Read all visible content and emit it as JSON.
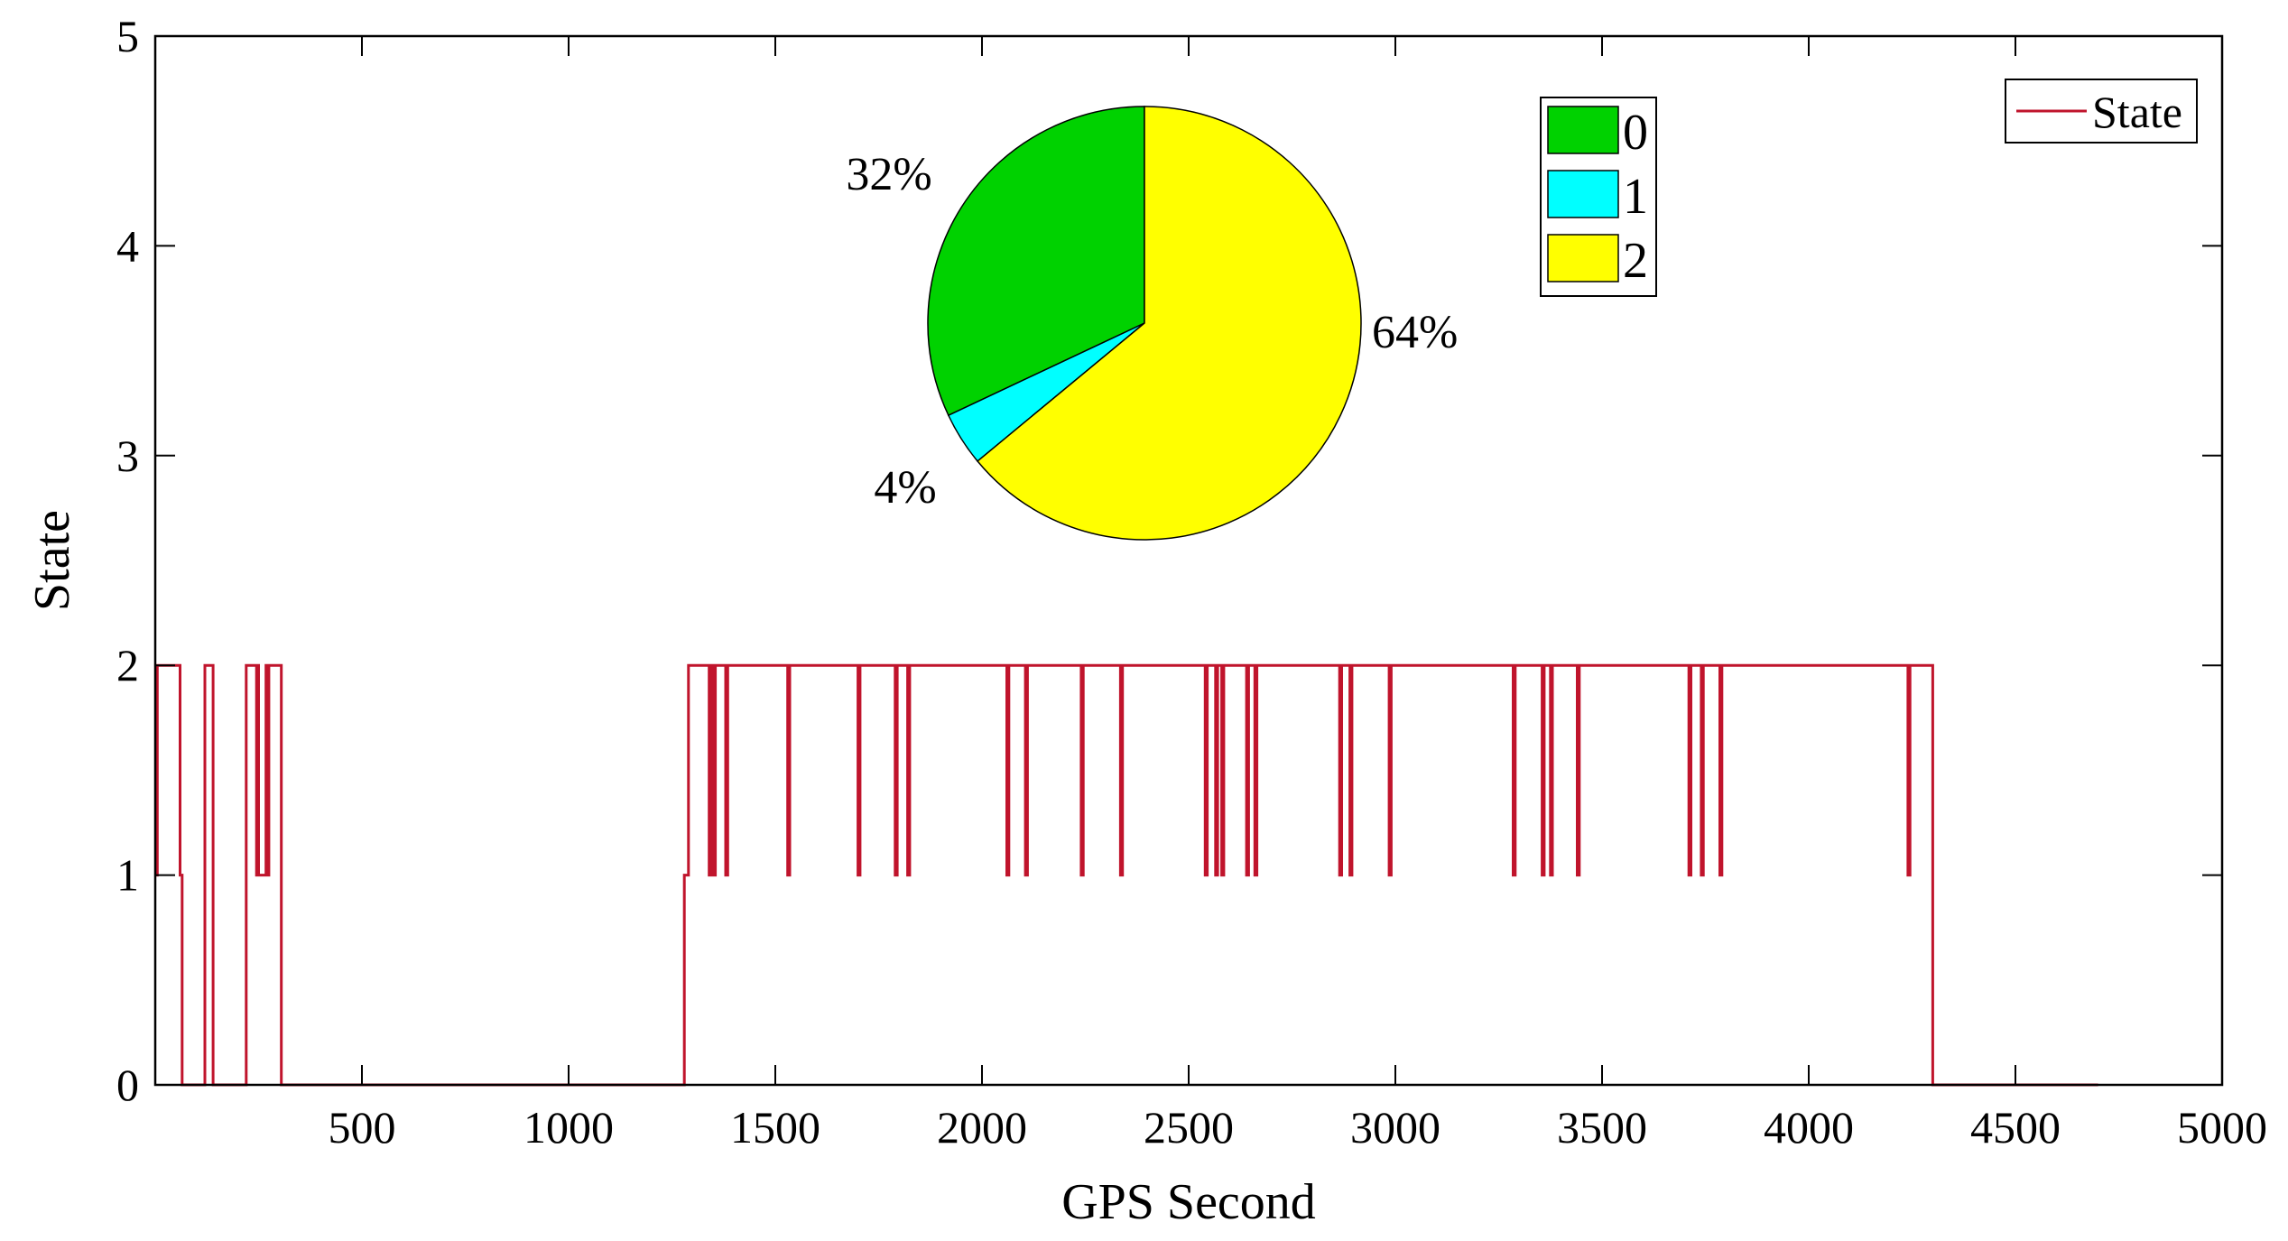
{
  "chart_data": [
    {
      "type": "line",
      "step": true,
      "xlabel": "GPS Second",
      "ylabel": "State",
      "xlim": [
        0,
        5000
      ],
      "ylim": [
        0,
        5
      ],
      "xticks": [
        500,
        1000,
        1500,
        2000,
        2500,
        3000,
        3500,
        4000,
        4500,
        5000
      ],
      "yticks": [
        0,
        1,
        2,
        3,
        4,
        5
      ],
      "grid": false,
      "legend_position": "top-right",
      "series": [
        {
          "name": "State",
          "color": "#c0142c",
          "x": [
            0,
            5,
            5,
            60,
            60,
            65,
            65,
            120,
            120,
            140,
            140,
            220,
            220,
            245,
            245,
            248,
            248,
            250,
            250,
            268,
            268,
            272,
            272,
            275,
            275,
            305,
            305,
            1280,
            1280,
            1290,
            1290,
            1340,
            1340,
            1345,
            1345,
            1350,
            1350,
            1355,
            1355,
            1380,
            1380,
            1385,
            1385,
            1530,
            1530,
            1535,
            1535,
            1700,
            1700,
            1705,
            1705,
            1790,
            1790,
            1795,
            1795,
            1820,
            1820,
            1825,
            1825,
            2060,
            2060,
            2065,
            2065,
            2105,
            2105,
            2110,
            2110,
            2240,
            2240,
            2245,
            2245,
            2335,
            2335,
            2340,
            2340,
            2540,
            2540,
            2545,
            2545,
            2565,
            2565,
            2570,
            2570,
            2580,
            2580,
            2585,
            2585,
            2640,
            2640,
            2645,
            2645,
            2660,
            2660,
            2665,
            2665,
            2865,
            2865,
            2870,
            2870,
            2890,
            2890,
            2895,
            2895,
            2985,
            2985,
            2990,
            2990,
            3285,
            3285,
            3290,
            3290,
            3355,
            3355,
            3360,
            3360,
            3375,
            3375,
            3380,
            3380,
            3440,
            3440,
            3445,
            3445,
            3710,
            3710,
            3715,
            3715,
            3740,
            3740,
            3745,
            3745,
            3785,
            3785,
            3790,
            3790,
            4240,
            4240,
            4245,
            4245,
            4300,
            4300,
            4700
          ],
          "y": [
            1,
            1,
            2,
            2,
            1,
            1,
            0,
            0,
            2,
            2,
            0,
            0,
            2,
            2,
            1,
            1,
            2,
            2,
            1,
            1,
            2,
            2,
            1,
            1,
            2,
            2,
            0,
            0,
            1,
            1,
            2,
            2,
            1,
            1,
            2,
            2,
            1,
            1,
            2,
            2,
            1,
            1,
            2,
            2,
            1,
            1,
            2,
            2,
            1,
            1,
            2,
            2,
            1,
            1,
            2,
            2,
            1,
            1,
            2,
            2,
            1,
            1,
            2,
            2,
            1,
            1,
            2,
            2,
            1,
            1,
            2,
            2,
            1,
            1,
            2,
            2,
            1,
            1,
            2,
            2,
            1,
            1,
            2,
            2,
            1,
            1,
            2,
            2,
            1,
            1,
            2,
            2,
            1,
            1,
            2,
            2,
            1,
            1,
            2,
            2,
            1,
            1,
            2,
            2,
            1,
            1,
            2,
            2,
            1,
            1,
            2,
            2,
            1,
            1,
            2,
            2,
            1,
            1,
            2,
            2,
            1,
            1,
            2,
            2,
            1,
            1,
            2,
            2,
            1,
            1,
            2,
            2,
            1,
            1,
            2,
            2,
            1,
            1,
            2,
            2,
            0,
            0
          ]
        }
      ]
    },
    {
      "type": "pie",
      "legend_position": "top-right",
      "slices": [
        {
          "label": "0",
          "value": 32,
          "label_text": "32%",
          "color": "#00d200"
        },
        {
          "label": "1",
          "value": 4,
          "label_text": "4%",
          "color": "#00ffff"
        },
        {
          "label": "2",
          "value": 64,
          "label_text": "64%",
          "color": "#ffff00"
        }
      ]
    }
  ]
}
